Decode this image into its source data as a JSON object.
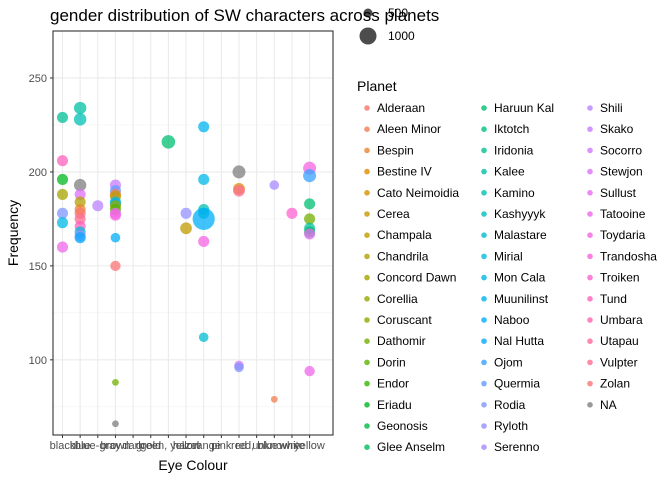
{
  "chart_data": {
    "type": "scatter",
    "title": "gender distribution of SW characters across planets",
    "xlabel": "Eye Colour",
    "ylabel": "Frequency",
    "ylim": [
      60,
      275
    ],
    "grid": true,
    "legend_position": "right",
    "categories": [
      "black",
      "blue",
      "blue-gray",
      "brown",
      "dark",
      "gold",
      "green, yellow",
      "hazel",
      "orange",
      "pink",
      "red",
      "red, blue",
      "unknown",
      "white",
      "yellow"
    ],
    "y_ticks": [
      100,
      150,
      200,
      250
    ],
    "size_legend": {
      "values": [
        "500",
        "1000"
      ]
    },
    "color_legend_title": "Planet",
    "planets": [
      {
        "name": "Alderaan",
        "color": "#F8766D"
      },
      {
        "name": "Aleen Minor",
        "color": "#F27D52"
      },
      {
        "name": "Bespin",
        "color": "#EA8331"
      },
      {
        "name": "Bestine IV",
        "color": "#E08B00"
      },
      {
        "name": "Cato Neimoidia",
        "color": "#D69100"
      },
      {
        "name": "Cerea",
        "color": "#CB9700"
      },
      {
        "name": "Champala",
        "color": "#C09B00"
      },
      {
        "name": "Chandrila",
        "color": "#B3A000"
      },
      {
        "name": "Concord Dawn",
        "color": "#A5A400"
      },
      {
        "name": "Corellia",
        "color": "#96A800"
      },
      {
        "name": "Coruscant",
        "color": "#86AC00"
      },
      {
        "name": "Dathomir",
        "color": "#73AF00"
      },
      {
        "name": "Dorin",
        "color": "#5BB300"
      },
      {
        "name": "Endor",
        "color": "#39B600"
      },
      {
        "name": "Eriadu",
        "color": "#00B81F"
      },
      {
        "name": "Geonosis",
        "color": "#00BB44"
      },
      {
        "name": "Glee Anselm",
        "color": "#00BD5C"
      },
      {
        "name": "Haruun Kal",
        "color": "#00BF71"
      },
      {
        "name": "Iktotch",
        "color": "#00C084"
      },
      {
        "name": "Iridonia",
        "color": "#00C094"
      },
      {
        "name": "Kalee",
        "color": "#00C1A4"
      },
      {
        "name": "Kamino",
        "color": "#00C0B4"
      },
      {
        "name": "Kashyyyk",
        "color": "#00BFC2"
      },
      {
        "name": "Malastare",
        "color": "#00BDD0"
      },
      {
        "name": "Mirial",
        "color": "#00BBDC"
      },
      {
        "name": "Mon Cala",
        "color": "#00B8E7"
      },
      {
        "name": "Muunilinst",
        "color": "#00B4F0"
      },
      {
        "name": "Naboo",
        "color": "#00AFF8"
      },
      {
        "name": "Nal Hutta",
        "color": "#00A9FF"
      },
      {
        "name": "Ojom",
        "color": "#35A2FF"
      },
      {
        "name": "Quermia",
        "color": "#619CFF"
      },
      {
        "name": "Rodia",
        "color": "#7F96FF"
      },
      {
        "name": "Ryloth",
        "color": "#9590FF"
      },
      {
        "name": "Serenno",
        "color": "#A88AFF"
      },
      {
        "name": "Shili",
        "color": "#B983FF"
      },
      {
        "name": "Skako",
        "color": "#C77CFF"
      },
      {
        "name": "Socorro",
        "color": "#D376FF"
      },
      {
        "name": "Stewjon",
        "color": "#DD71FA"
      },
      {
        "name": "Sullust",
        "color": "#E76BF3"
      },
      {
        "name": "Tatooine",
        "color": "#EF67EB"
      },
      {
        "name": "Toydaria",
        "color": "#F564E3"
      },
      {
        "name": "Trandosha",
        "color": "#FA62D9"
      },
      {
        "name": "Troiken",
        "color": "#FD61D1"
      },
      {
        "name": "Tund",
        "color": "#FF62BC"
      },
      {
        "name": "Umbara",
        "color": "#FF65AE"
      },
      {
        "name": "Utapau",
        "color": "#FF689F"
      },
      {
        "name": "Vulpter",
        "color": "#FF6C91"
      },
      {
        "name": "Zolan",
        "color": "#FA7476"
      },
      {
        "name": "NA",
        "color": "#7F7F7F"
      }
    ],
    "points": [
      {
        "x": "black",
        "y": 229,
        "planet": "Iridonia",
        "size": 80
      },
      {
        "x": "black",
        "y": 206,
        "planet": "Tund",
        "size": 80
      },
      {
        "x": "black",
        "y": 196,
        "planet": "Eriadu",
        "size": 80
      },
      {
        "x": "black",
        "y": 188,
        "planet": "Concord Dawn",
        "size": 80
      },
      {
        "x": "black",
        "y": 178,
        "planet": "Rodia",
        "size": 80
      },
      {
        "x": "black",
        "y": 173,
        "planet": "Mon Cala",
        "size": 80
      },
      {
        "x": "black",
        "y": 160,
        "planet": "Tatooine",
        "size": 80
      },
      {
        "x": "blue",
        "y": 234,
        "planet": "Kalee",
        "size": 100
      },
      {
        "x": "blue",
        "y": 228,
        "planet": "Kamino",
        "size": 100
      },
      {
        "x": "blue",
        "y": 193,
        "planet": "NA",
        "size": 100
      },
      {
        "x": "blue",
        "y": 188,
        "planet": "Stewjon",
        "size": 80
      },
      {
        "x": "blue",
        "y": 184,
        "planet": "Chandrila",
        "size": 80
      },
      {
        "x": "blue",
        "y": 180,
        "planet": "Bespin",
        "size": 80
      },
      {
        "x": "blue",
        "y": 178,
        "planet": "Alderaan",
        "size": 80
      },
      {
        "x": "blue",
        "y": 175,
        "planet": "Vulpter",
        "size": 80
      },
      {
        "x": "blue",
        "y": 171,
        "planet": "Tund",
        "size": 80
      },
      {
        "x": "blue",
        "y": 168,
        "planet": "Mirial",
        "size": 80
      },
      {
        "x": "blue",
        "y": 166,
        "planet": "Serenno",
        "size": 80
      },
      {
        "x": "blue",
        "y": 165,
        "planet": "Nal Hutta",
        "size": 80
      },
      {
        "x": "blue-gray",
        "y": 182,
        "planet": "Shili",
        "size": 80
      },
      {
        "x": "brown",
        "y": 193,
        "planet": "Skako",
        "size": 80
      },
      {
        "x": "brown",
        "y": 190,
        "planet": "Quermia",
        "size": 80
      },
      {
        "x": "brown",
        "y": 188,
        "planet": "Aleen Minor",
        "size": 80
      },
      {
        "x": "brown",
        "y": 187,
        "planet": "Champala",
        "size": 80
      },
      {
        "x": "brown",
        "y": 184,
        "planet": "Mirial",
        "size": 80
      },
      {
        "x": "brown",
        "y": 183,
        "planet": "Naboo",
        "size": 80
      },
      {
        "x": "brown",
        "y": 182,
        "planet": "Corellia",
        "size": 80
      },
      {
        "x": "brown",
        "y": 180,
        "planet": "Dorin",
        "size": 80
      },
      {
        "x": "brown",
        "y": 178,
        "planet": "Sullust",
        "size": 80
      },
      {
        "x": "brown",
        "y": 177,
        "planet": "Toydaria",
        "size": 80
      },
      {
        "x": "brown",
        "y": 165,
        "planet": "Naboo",
        "size": 60
      },
      {
        "x": "brown",
        "y": 150,
        "planet": "Zolan",
        "size": 70
      },
      {
        "x": "brown",
        "y": 88,
        "planet": "Dathomir",
        "size": 30
      },
      {
        "x": "brown",
        "y": 66,
        "planet": "NA",
        "size": 30
      },
      {
        "x": "green, yellow",
        "y": 216,
        "planet": "Haruun Kal",
        "size": 120
      },
      {
        "x": "hazel",
        "y": 178,
        "planet": "Ryloth",
        "size": 80
      },
      {
        "x": "hazel",
        "y": 170,
        "planet": "Champala",
        "size": 90
      },
      {
        "x": "orange",
        "y": 224,
        "planet": "Muunilinst",
        "size": 80
      },
      {
        "x": "orange",
        "y": 196,
        "planet": "Mon Cala",
        "size": 80
      },
      {
        "x": "orange",
        "y": 180,
        "planet": "Kamino",
        "size": 80
      },
      {
        "x": "orange",
        "y": 178,
        "planet": "Kashyyyk",
        "size": 80
      },
      {
        "x": "orange",
        "y": 175,
        "planet": "Naboo",
        "size": 320
      },
      {
        "x": "orange",
        "y": 163,
        "planet": "Toydaria",
        "size": 80
      },
      {
        "x": "orange",
        "y": 112,
        "planet": "Malastare",
        "size": 60
      },
      {
        "x": "red",
        "y": 200,
        "planet": "NA",
        "size": 110
      },
      {
        "x": "red",
        "y": 191,
        "planet": "Cato Neimoidia",
        "size": 90
      },
      {
        "x": "red",
        "y": 190,
        "planet": "Vulpter",
        "size": 90
      },
      {
        "x": "red",
        "y": 97,
        "planet": "Socorro",
        "size": 60
      },
      {
        "x": "red",
        "y": 96,
        "planet": "Rodia",
        "size": 60
      },
      {
        "x": "unknown",
        "y": 193,
        "planet": "Serenno",
        "size": 60
      },
      {
        "x": "unknown",
        "y": 79,
        "planet": "Aleen Minor",
        "size": 30
      },
      {
        "x": "white",
        "y": 178,
        "planet": "Troiken",
        "size": 80
      },
      {
        "x": "yellow",
        "y": 202,
        "planet": "Toydaria",
        "size": 110
      },
      {
        "x": "yellow",
        "y": 198,
        "planet": "Ojom",
        "size": 110
      },
      {
        "x": "yellow",
        "y": 183,
        "planet": "Haruun Kal",
        "size": 80
      },
      {
        "x": "yellow",
        "y": 175,
        "planet": "Dathomir",
        "size": 80
      },
      {
        "x": "yellow",
        "y": 170,
        "planet": "Kalee",
        "size": 80
      },
      {
        "x": "yellow",
        "y": 168,
        "planet": "Glee Anselm",
        "size": 80
      },
      {
        "x": "yellow",
        "y": 167,
        "planet": "Sullust",
        "size": 80
      },
      {
        "x": "yellow",
        "y": 94,
        "planet": "Tatooine",
        "size": 70
      }
    ]
  }
}
